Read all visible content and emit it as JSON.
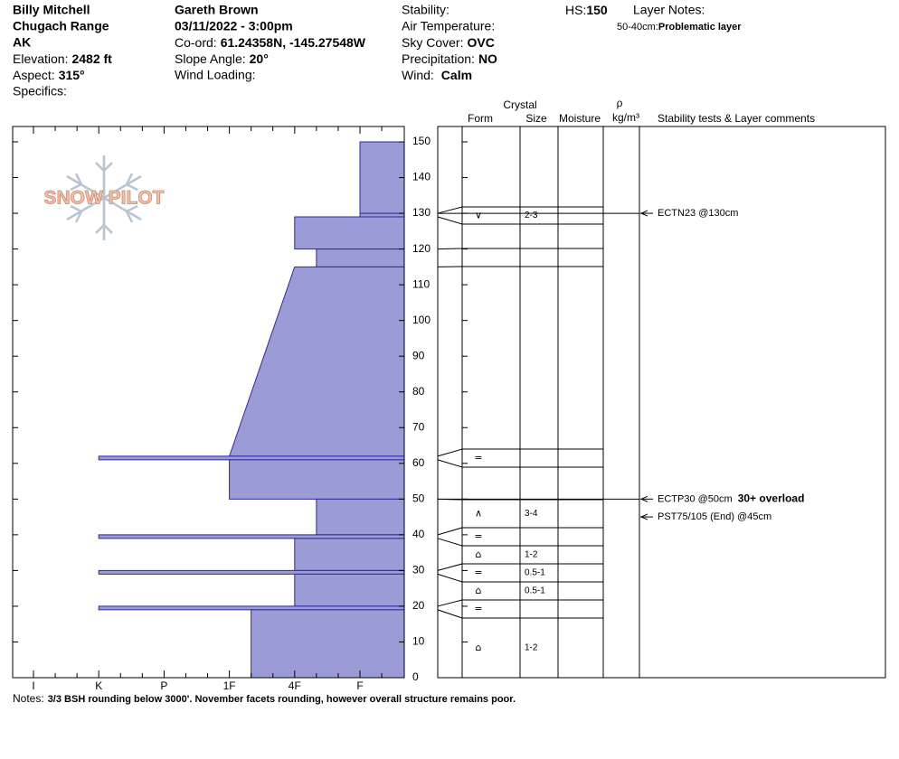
{
  "header": {
    "location": [
      "Billy Mitchell",
      "Chugach Range",
      "AK"
    ],
    "elevation": {
      "label": "Elevation:",
      "value": "2482 ft"
    },
    "aspect": {
      "label": "Aspect:",
      "value": "315°"
    },
    "specifics": {
      "label": "Specifics:"
    },
    "observer": "Gareth Brown",
    "datetime": "03/11/2022 - 3:00pm",
    "coord": {
      "label": "Co-ord:",
      "value": "61.24358N, -145.27548W"
    },
    "slope": {
      "label": "Slope Angle:",
      "value": "20°"
    },
    "wind_loading": {
      "label": "Wind Loading:"
    },
    "stability": {
      "label": "Stability:"
    },
    "air_temp": {
      "label": "Air Temperature:"
    },
    "sky": {
      "label": "Sky Cover:",
      "value": "OVC"
    },
    "precip": {
      "label": "Precipitation:",
      "value": "NO"
    },
    "wind": {
      "label": "Wind:",
      "value": "Calm"
    },
    "hs": {
      "label": "HS:",
      "value": "150"
    },
    "layer_notes": {
      "label": "Layer Notes:",
      "range": "50-40cm:",
      "text": "Problematic layer"
    }
  },
  "logo": "SNOW PILOT",
  "table_headers": {
    "crystal": "Crystal",
    "form": "Form",
    "size": "Size",
    "moisture": "Moisture",
    "rho": "ρ",
    "density_unit": "kg/m³",
    "comments": "Stability tests & Layer comments"
  },
  "profile": {
    "depth_ticks": [
      0,
      10,
      20,
      30,
      40,
      50,
      60,
      70,
      80,
      90,
      100,
      110,
      120,
      130,
      140,
      150
    ],
    "hardness_ticks": [
      "I",
      "K",
      "P",
      "1F",
      "4F",
      "F"
    ],
    "layers": [
      {
        "top": 150,
        "bottom": 130,
        "hardness": "F"
      },
      {
        "top": 130,
        "bottom": 129,
        "hardness": "F",
        "form": "∨",
        "size": "2-3"
      },
      {
        "top": 129,
        "bottom": 120,
        "hardness": "4F"
      },
      {
        "top": 120,
        "bottom": 115,
        "hardness": "4F-"
      },
      {
        "top": 115,
        "bottom": 62,
        "hardness": "4F",
        "hardness_bottom": "1F"
      },
      {
        "top": 62,
        "bottom": 61,
        "hardness": "K",
        "form": "="
      },
      {
        "top": 61,
        "bottom": 50,
        "hardness": "1F"
      },
      {
        "top": 50,
        "bottom": 40,
        "hardness": "4F-",
        "form": "∧",
        "size": "3-4"
      },
      {
        "top": 40,
        "bottom": 39,
        "hardness": "K",
        "form": "="
      },
      {
        "top": 39,
        "bottom": 30,
        "hardness": "4F",
        "form": "⌂",
        "size": "1-2"
      },
      {
        "top": 30,
        "bottom": 29,
        "hardness": "K",
        "form": "=",
        "size": "0.5-1"
      },
      {
        "top": 29,
        "bottom": 20,
        "hardness": "4F",
        "form": "⌂",
        "size": "0.5-1"
      },
      {
        "top": 20,
        "bottom": 19,
        "hardness": "K",
        "form": "="
      },
      {
        "top": 19,
        "bottom": 0,
        "hardness": "1F-",
        "form": "⌂",
        "size": "1-2"
      }
    ],
    "tests": [
      {
        "text": "ECTN23 @130cm",
        "depth": 130
      },
      {
        "text": "ECTP30 @50cm",
        "depth": 50,
        "comment": "30+ overload"
      },
      {
        "text": "PST75/105 (End) @45cm",
        "depth": 45
      }
    ]
  },
  "notes": {
    "label": "Notes:",
    "text": "3/3 BSH rounding below 3000'.  November facets rounding, however overall structure remains poor."
  }
}
